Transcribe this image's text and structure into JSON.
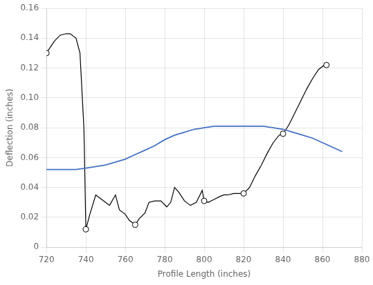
{
  "chart_data": {
    "type": "line",
    "xlabel": "Profile Length (inches)",
    "ylabel": "Deflection (inches)",
    "xlim": [
      720,
      880
    ],
    "ylim": [
      0,
      0.16
    ],
    "xticks": [
      720,
      740,
      760,
      780,
      800,
      820,
      840,
      860,
      880
    ],
    "yticks": [
      0,
      0.02,
      0.04,
      0.06,
      0.08,
      {
        "value": 0.1,
        "label": "0.10"
      },
      0.12,
      0.14,
      0.16
    ],
    "grid": true,
    "series": [
      {
        "type": "line",
        "color": "#4472c4",
        "x": [
          720,
          725,
          730,
          735,
          740,
          745,
          750,
          755,
          760,
          765,
          770,
          775,
          780,
          785,
          790,
          795,
          800,
          805,
          810,
          815,
          820,
          825,
          830,
          835,
          840,
          845,
          850,
          855,
          860,
          865,
          870
        ],
        "values": [
          0.052,
          0.052,
          0.052,
          0.052,
          0.053,
          0.054,
          0.055,
          0.057,
          0.059,
          0.062,
          0.065,
          0.068,
          0.072,
          0.075,
          0.077,
          0.079,
          0.08,
          0.081,
          0.081,
          0.081,
          0.081,
          0.081,
          0.081,
          0.08,
          0.079,
          0.077,
          0.075,
          0.073,
          0.07,
          0.067,
          0.064
        ]
      },
      {
        "type": "line",
        "color": "#000000",
        "x": [
          720,
          724,
          727,
          730,
          732,
          735,
          737,
          739,
          740,
          742,
          745,
          748,
          750,
          752,
          755,
          757,
          760,
          762,
          765,
          767,
          770,
          772,
          775,
          778,
          781,
          783,
          785,
          787,
          790,
          793,
          796,
          799,
          800,
          802,
          805,
          808,
          810,
          812,
          815,
          818,
          820,
          823,
          826,
          829,
          832,
          835,
          838,
          840,
          843,
          846,
          849,
          852,
          855,
          858,
          861,
          863
        ],
        "values": [
          0.13,
          0.138,
          0.142,
          0.143,
          0.143,
          0.14,
          0.13,
          0.08,
          0.012,
          0.022,
          0.035,
          0.032,
          0.03,
          0.028,
          0.035,
          0.025,
          0.022,
          0.018,
          0.015,
          0.019,
          0.023,
          0.03,
          0.031,
          0.031,
          0.027,
          0.03,
          0.04,
          0.037,
          0.031,
          0.028,
          0.03,
          0.038,
          0.031,
          0.03,
          0.032,
          0.034,
          0.035,
          0.035,
          0.036,
          0.036,
          0.036,
          0.04,
          0.048,
          0.055,
          0.063,
          0.07,
          0.075,
          0.076,
          0.082,
          0.09,
          0.098,
          0.106,
          0.113,
          0.119,
          0.122,
          0.122
        ]
      },
      {
        "type": "scatter",
        "marker": "circle",
        "color": "#000000",
        "x": [
          720,
          740,
          765,
          800,
          820,
          840,
          862
        ],
        "values": [
          0.13,
          0.012,
          0.015,
          0.031,
          0.036,
          0.076,
          0.122
        ]
      }
    ]
  }
}
